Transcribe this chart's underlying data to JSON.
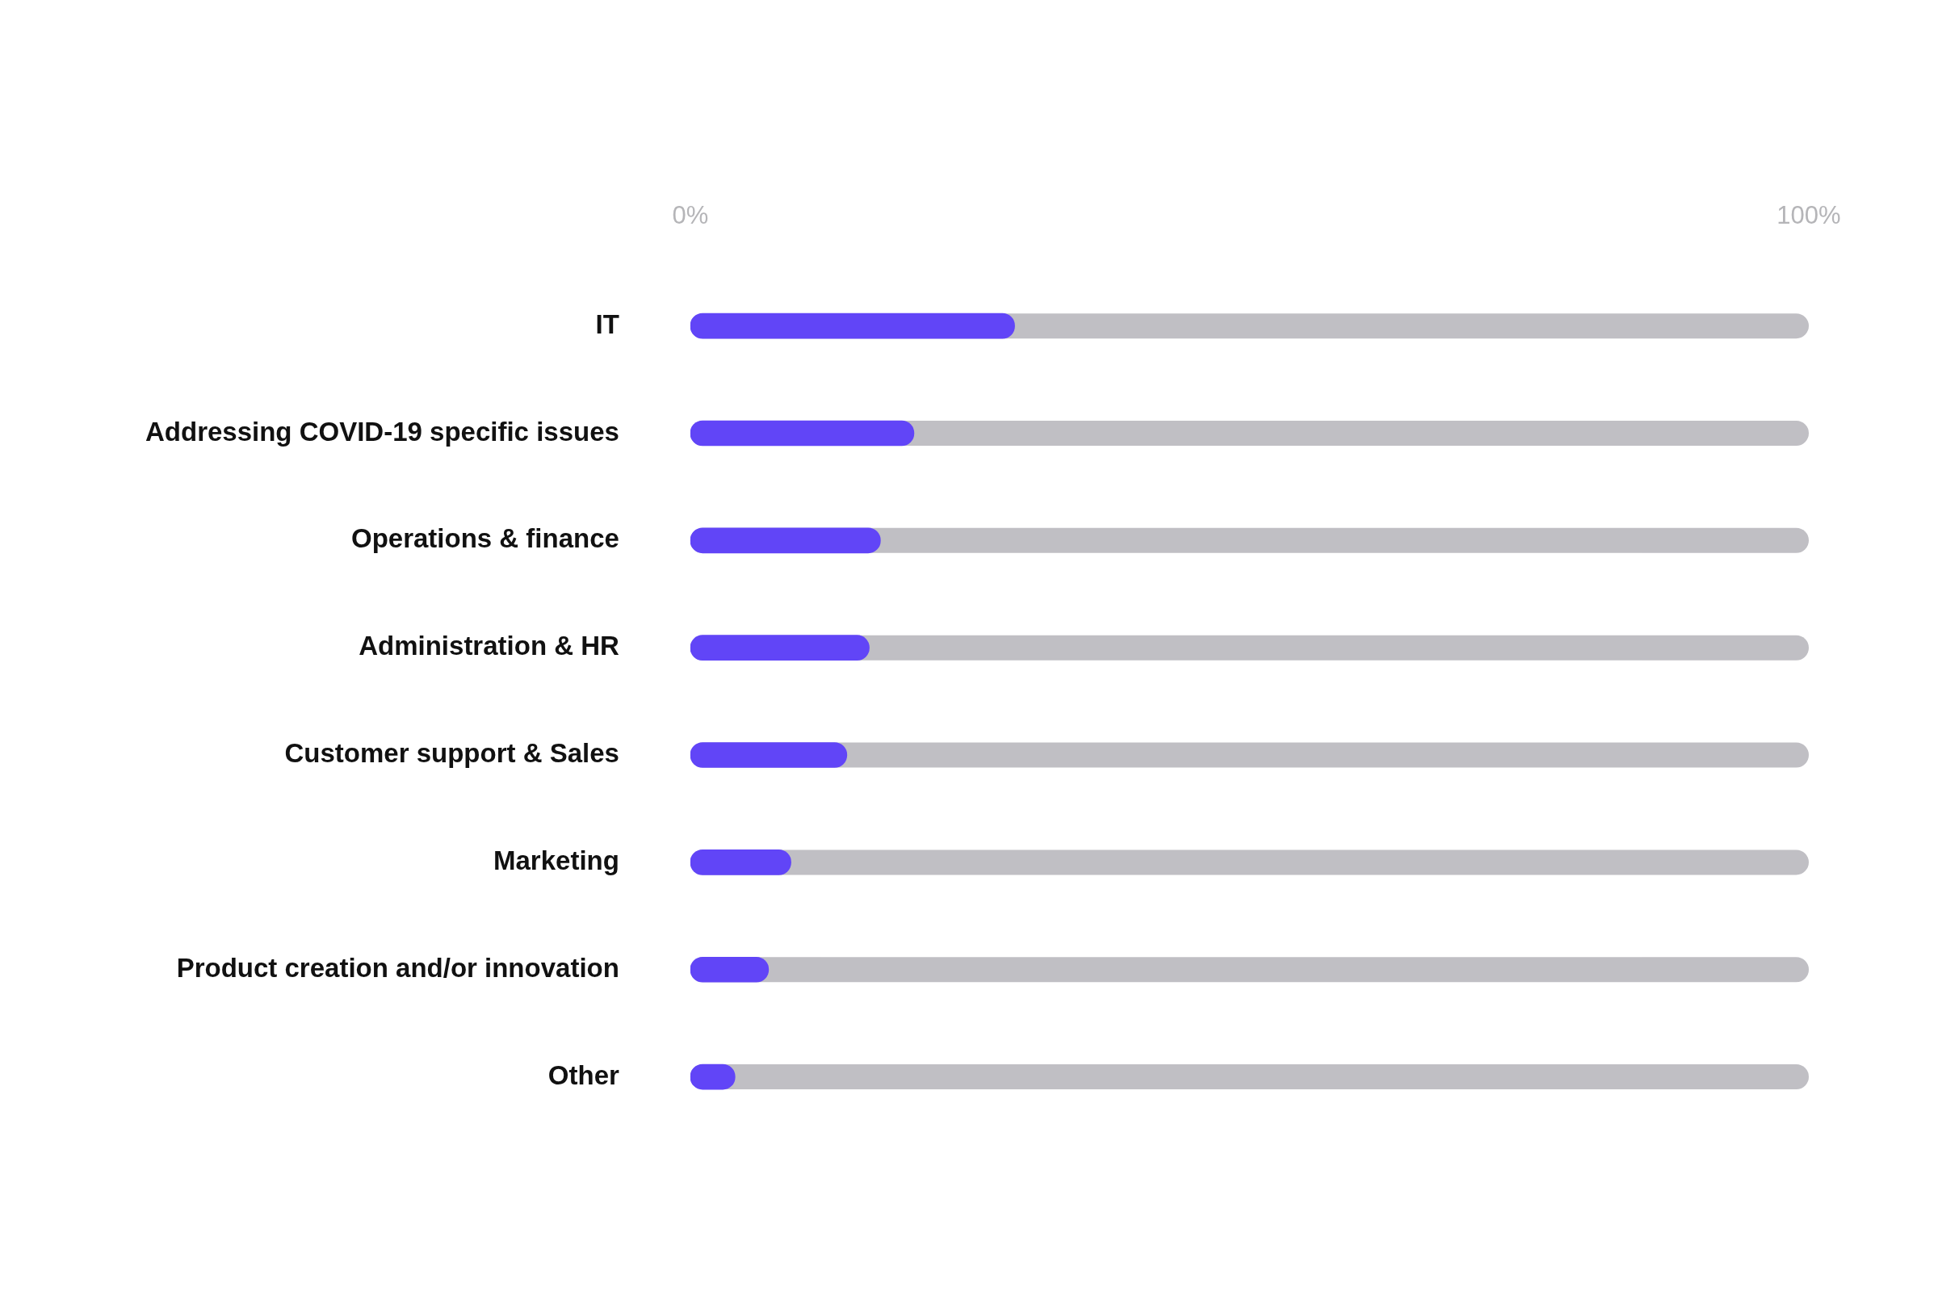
{
  "chart_data": {
    "type": "bar",
    "orientation": "horizontal",
    "categories": [
      "IT",
      "Addressing COVID-19 specific issues",
      "Operations & finance",
      "Administration & HR",
      "Customer support & Sales",
      "Marketing",
      "Product creation and/or innovation",
      "Other"
    ],
    "values": [
      29,
      20,
      17,
      16,
      14,
      9,
      7,
      4
    ],
    "color": "#6145f7",
    "xlim": [
      0,
      100
    ],
    "xticks": [
      {
        "value": 0,
        "label": "0%"
      },
      {
        "value": 100,
        "label": "100%"
      }
    ],
    "grid": false,
    "legend": false
  }
}
